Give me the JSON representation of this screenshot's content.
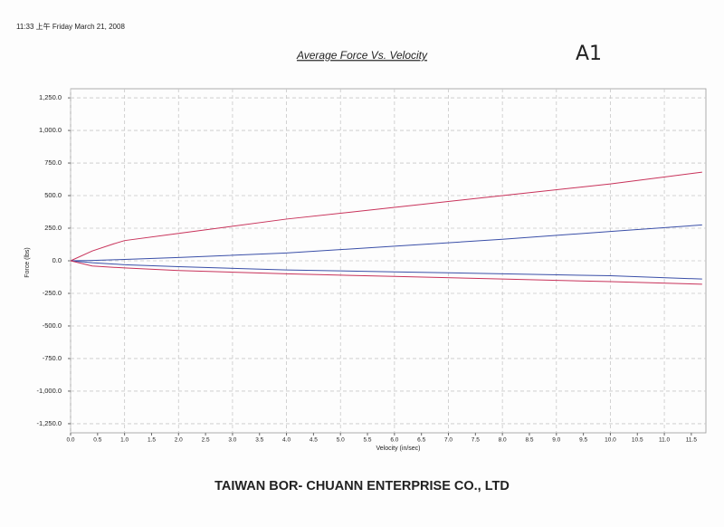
{
  "header": {
    "timestamp": "11:33 上午 Friday March 21, 2008",
    "mark": "A1"
  },
  "footer": "TAIWAN BOR- CHUANN ENTERPRISE CO., LTD",
  "chart_data": {
    "type": "line",
    "title": "Average Force Vs. Velocity",
    "x_label": "Velocity (in/sec)",
    "y_label": "Force (lbs)",
    "x": [
      0,
      0.4,
      0.8,
      1,
      2,
      4,
      6,
      8,
      10,
      11.7
    ],
    "series": [
      {
        "color": "#c8325a",
        "values": [
          0,
          75,
          130,
          155,
          210,
          320,
          410,
          500,
          590,
          680
        ]
      },
      {
        "color": "#3a4fa8",
        "values": [
          0,
          3,
          8,
          10,
          25,
          60,
          112,
          165,
          225,
          275
        ]
      },
      {
        "color": "#3a4fa8",
        "values": [
          0,
          -15,
          -25,
          -30,
          -45,
          -70,
          -85,
          -100,
          -115,
          -140
        ]
      },
      {
        "color": "#c8325a",
        "values": [
          0,
          -40,
          -50,
          -55,
          -75,
          -100,
          -120,
          -140,
          -160,
          -180
        ]
      }
    ],
    "xlim": [
      0,
      11.77
    ],
    "ylim": [
      -1320,
      1320
    ],
    "xticks": [
      {
        "value": 0,
        "label": "0.0"
      },
      {
        "value": 0.5,
        "label": "0.5"
      },
      {
        "value": 1,
        "label": "1.0"
      },
      {
        "value": 1.5,
        "label": "1.5"
      },
      {
        "value": 2,
        "label": "2.0"
      },
      {
        "value": 2.5,
        "label": "2.5"
      },
      {
        "value": 3,
        "label": "3.0"
      },
      {
        "value": 3.5,
        "label": "3.5"
      },
      {
        "value": 4,
        "label": "4.0"
      },
      {
        "value": 4.5,
        "label": "4.5"
      },
      {
        "value": 5,
        "label": "5.0"
      },
      {
        "value": 5.5,
        "label": "5.5"
      },
      {
        "value": 6,
        "label": "6.0"
      },
      {
        "value": 6.5,
        "label": "6.5"
      },
      {
        "value": 7,
        "label": "7.0"
      },
      {
        "value": 7.5,
        "label": "7.5"
      },
      {
        "value": 8,
        "label": "8.0"
      },
      {
        "value": 8.5,
        "label": "8.5"
      },
      {
        "value": 9,
        "label": "9.0"
      },
      {
        "value": 9.5,
        "label": "9.5"
      },
      {
        "value": 10,
        "label": "10.0"
      },
      {
        "value": 10.5,
        "label": "10.5"
      },
      {
        "value": 11,
        "label": "11.0"
      },
      {
        "value": 11.5,
        "label": "11.5"
      }
    ],
    "yticks": [
      {
        "value": 1250,
        "label": "1,250.0"
      },
      {
        "value": 1000,
        "label": "1,000.0"
      },
      {
        "value": 750,
        "label": "750.0"
      },
      {
        "value": 500,
        "label": "500.0"
      },
      {
        "value": 250,
        "label": "250.0"
      },
      {
        "value": 0,
        "label": "0.0"
      },
      {
        "value": -250,
        "label": "-250.0"
      },
      {
        "value": -500,
        "label": "-500.0"
      },
      {
        "value": -750,
        "label": "-750.0"
      },
      {
        "value": -1000,
        "label": "-1,000.0"
      },
      {
        "value": -1250,
        "label": "-1,250.0"
      }
    ],
    "grid": true
  }
}
